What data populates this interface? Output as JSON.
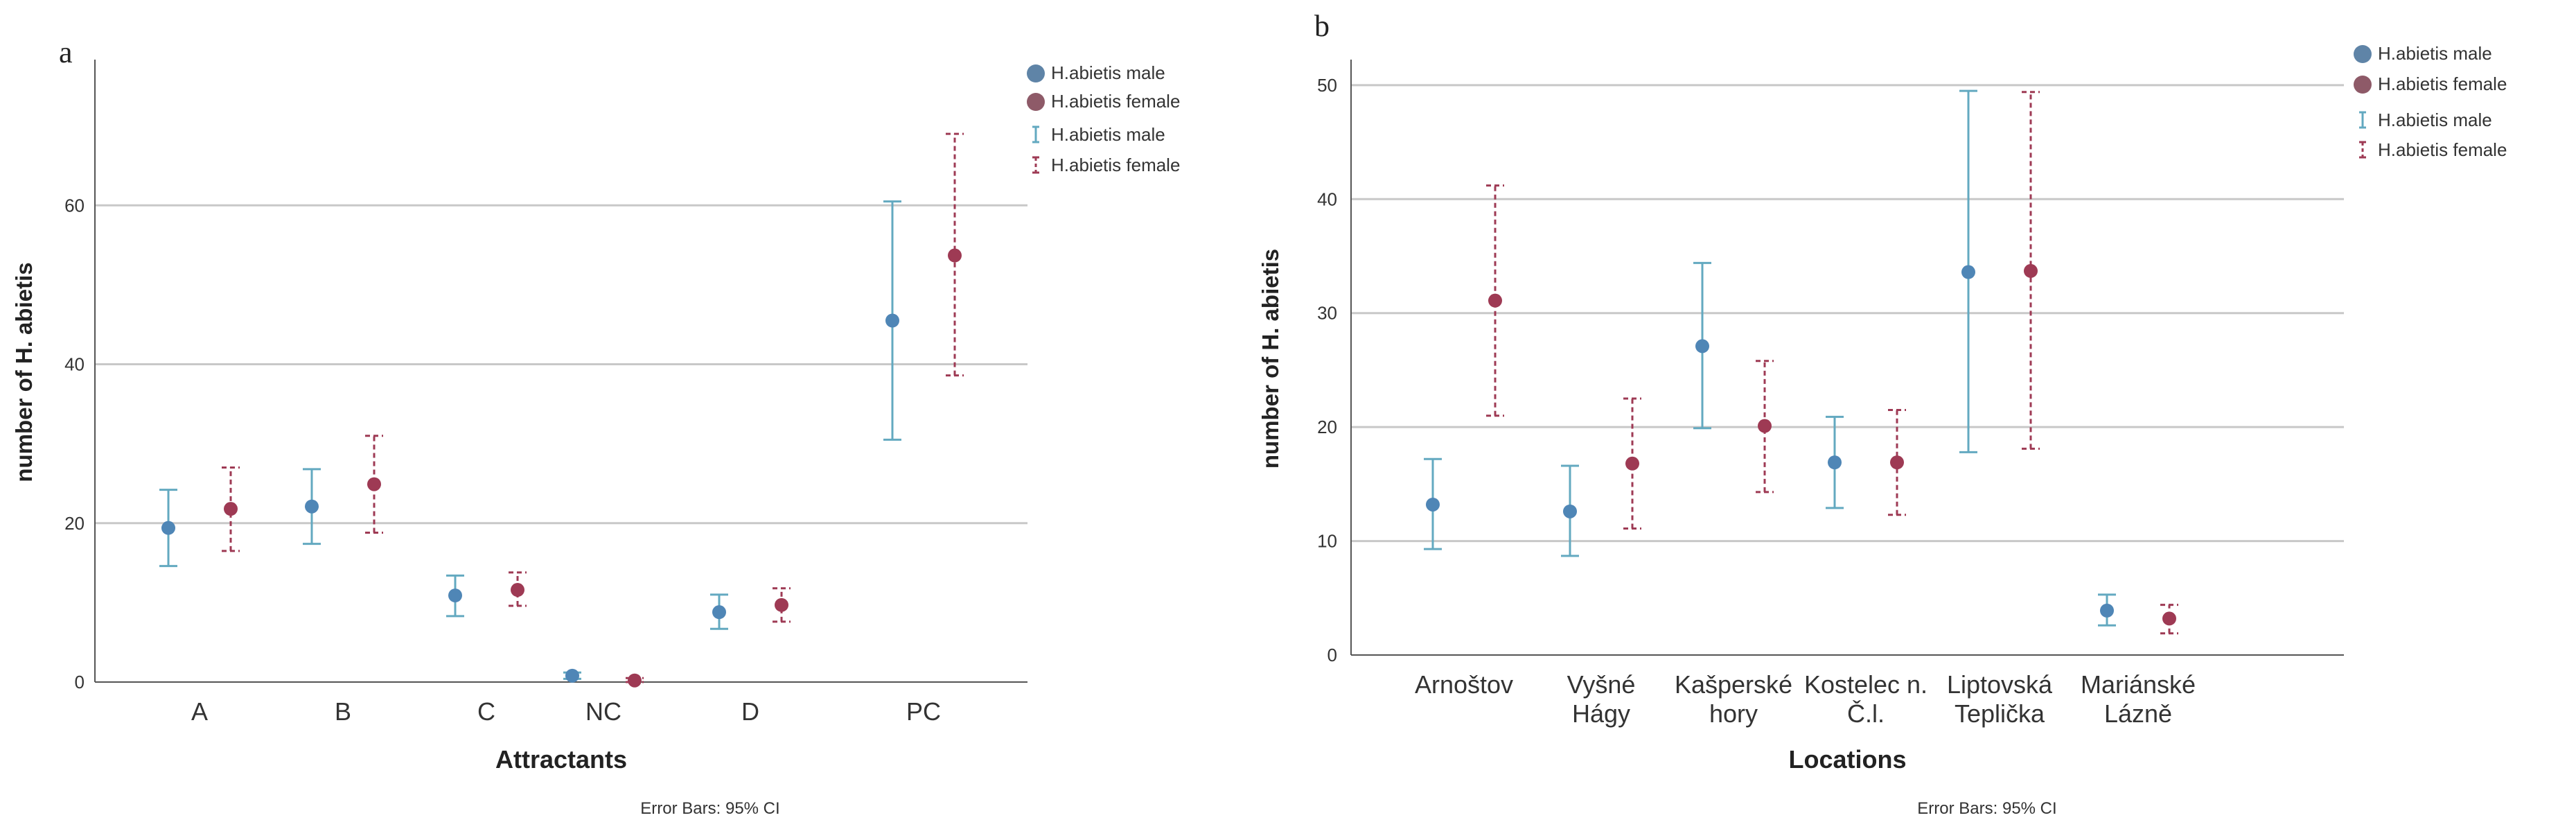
{
  "colors": {
    "male": "#4f86b6",
    "male_marker": "#5f84a7",
    "male_ci": "#63a9c0",
    "female": "#9e3a54",
    "female_marker": "#8e5a68",
    "grid": "#c8c8c8",
    "axis": "#555555"
  },
  "chart_data": [
    {
      "type": "scatter",
      "panel": "a",
      "xlabel": "Attractants",
      "ylabel": "number of H. abietis",
      "footnote": "Error Bars: 95% CI",
      "categories": [
        "A",
        "B",
        "C",
        "NC",
        "D",
        "PC"
      ],
      "ylim": [
        0,
        78
      ],
      "yticks": [
        0,
        20,
        40,
        60
      ],
      "grid": true,
      "legend_position": "top-right",
      "legend": [
        "H.abietis male",
        "H.abietis female",
        "H.abietis male",
        "H.abietis female"
      ],
      "series": [
        {
          "name": "H.abietis male",
          "values": [
            19.4,
            22.1,
            10.9,
            0.8,
            8.8,
            45.5
          ],
          "ci_low": [
            14.6,
            17.4,
            8.3,
            0.4,
            6.7,
            30.5
          ],
          "ci_high": [
            24.2,
            26.8,
            13.4,
            1.2,
            11.0,
            60.5
          ]
        },
        {
          "name": "H.abietis female",
          "values": [
            21.8,
            24.9,
            11.6,
            0.2,
            9.7,
            53.7
          ],
          "ci_low": [
            16.5,
            18.8,
            9.6,
            0.0,
            7.6,
            38.6
          ],
          "ci_high": [
            27.0,
            31.0,
            13.8,
            0.5,
            11.8,
            69.0
          ]
        }
      ]
    },
    {
      "type": "scatter",
      "panel": "b",
      "xlabel": "Locations",
      "ylabel": "number of H. abietis",
      "footnote": "Error Bars: 95% CI",
      "categories": [
        [
          "Arnoštov"
        ],
        [
          "Vyšné",
          "Hágy"
        ],
        [
          "Kašperské",
          "hory"
        ],
        [
          "Kostelec n.",
          "Č.l."
        ],
        [
          "Liptovská",
          "Teplička"
        ],
        [
          "Mariánské",
          "Lázně"
        ]
      ],
      "ylim": [
        0,
        52
      ],
      "yticks": [
        0,
        10,
        20,
        30,
        40,
        50
      ],
      "grid": true,
      "legend_position": "top-right",
      "legend": [
        "H.abietis male",
        "H.abietis female",
        "H.abietis male",
        "H.abietis female"
      ],
      "series": [
        {
          "name": "H.abietis male",
          "values": [
            13.2,
            12.6,
            27.1,
            16.9,
            33.6,
            3.9
          ],
          "ci_low": [
            9.3,
            8.7,
            19.9,
            12.9,
            17.8,
            2.6
          ],
          "ci_high": [
            17.2,
            16.6,
            34.4,
            20.9,
            49.5,
            5.3
          ]
        },
        {
          "name": "H.abietis female",
          "values": [
            31.1,
            16.8,
            20.1,
            16.9,
            33.7,
            3.2
          ],
          "ci_low": [
            21.0,
            11.1,
            14.3,
            12.3,
            18.1,
            1.9
          ],
          "ci_high": [
            41.2,
            22.5,
            25.8,
            21.5,
            49.4,
            4.4
          ]
        }
      ]
    }
  ]
}
